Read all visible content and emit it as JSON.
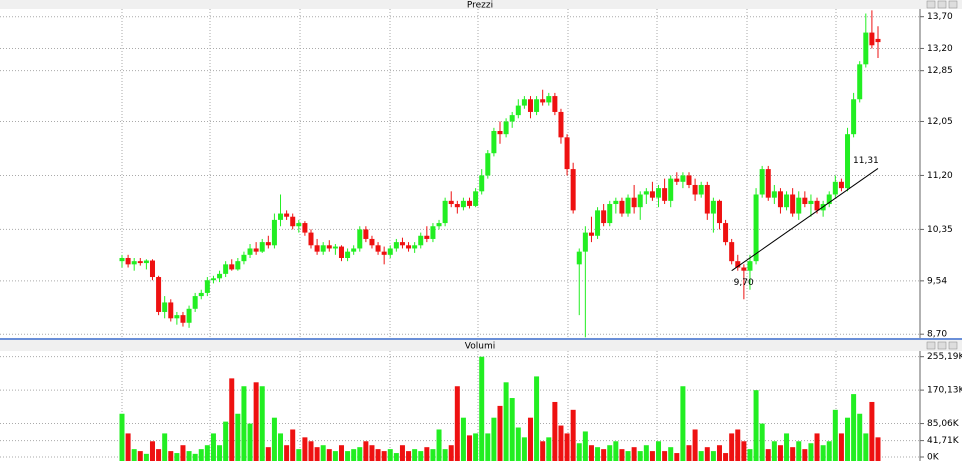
{
  "chart_data": [
    {
      "type": "candlestick",
      "title": "Prezzi",
      "up_color": "#22ee22",
      "down_color": "#ee1111",
      "ylim": [
        8.64,
        13.9
      ],
      "yticks": [
        {
          "value": 13.7,
          "label": "13,70"
        },
        {
          "value": 13.2,
          "label": "13,20"
        },
        {
          "value": 12.85,
          "label": "12,85"
        },
        {
          "value": 12.05,
          "label": "12,05"
        },
        {
          "value": 11.2,
          "label": "11,20"
        },
        {
          "value": 10.35,
          "label": "10,35"
        },
        {
          "value": 9.54,
          "label": "9,54"
        },
        {
          "value": 8.7,
          "label": "8,70"
        }
      ],
      "grid": true,
      "ohlc": [
        [
          9.85,
          9.95,
          9.75,
          9.9
        ],
        [
          9.9,
          9.95,
          9.75,
          9.8
        ],
        [
          9.8,
          9.9,
          9.7,
          9.85
        ],
        [
          9.85,
          9.9,
          9.78,
          9.82
        ],
        [
          9.82,
          9.88,
          9.72,
          9.86
        ],
        [
          9.86,
          9.88,
          9.55,
          9.6
        ],
        [
          9.6,
          9.62,
          9.0,
          9.05
        ],
        [
          9.05,
          9.3,
          8.95,
          9.2
        ],
        [
          9.2,
          9.25,
          8.9,
          8.95
        ],
        [
          8.95,
          9.05,
          8.85,
          9.0
        ],
        [
          9.0,
          9.05,
          8.82,
          8.88
        ],
        [
          8.88,
          9.15,
          8.8,
          9.1
        ],
        [
          9.1,
          9.35,
          9.05,
          9.3
        ],
        [
          9.3,
          9.4,
          9.25,
          9.35
        ],
        [
          9.35,
          9.6,
          9.3,
          9.55
        ],
        [
          9.55,
          9.62,
          9.5,
          9.58
        ],
        [
          9.58,
          9.7,
          9.52,
          9.65
        ],
        [
          9.65,
          9.85,
          9.6,
          9.8
        ],
        [
          9.8,
          9.88,
          9.7,
          9.72
        ],
        [
          9.72,
          9.9,
          9.7,
          9.85
        ],
        [
          9.85,
          10.0,
          9.8,
          9.95
        ],
        [
          9.95,
          10.12,
          9.9,
          10.05
        ],
        [
          10.05,
          10.15,
          9.95,
          10.0
        ],
        [
          10.0,
          10.2,
          9.98,
          10.15
        ],
        [
          10.15,
          10.25,
          10.05,
          10.1
        ],
        [
          10.1,
          10.6,
          10.05,
          10.5
        ],
        [
          10.5,
          10.9,
          10.4,
          10.6
        ],
        [
          10.6,
          10.65,
          10.5,
          10.55
        ],
        [
          10.55,
          10.6,
          10.35,
          10.4
        ],
        [
          10.4,
          10.5,
          10.3,
          10.45
        ],
        [
          10.45,
          10.48,
          10.25,
          10.3
        ],
        [
          10.3,
          10.35,
          10.05,
          10.1
        ],
        [
          10.1,
          10.2,
          9.95,
          10.0
        ],
        [
          10.0,
          10.15,
          9.95,
          10.1
        ],
        [
          10.1,
          10.18,
          10.0,
          10.05
        ],
        [
          10.05,
          10.12,
          9.95,
          10.08
        ],
        [
          10.08,
          10.1,
          9.85,
          9.9
        ],
        [
          9.9,
          10.05,
          9.85,
          10.0
        ],
        [
          10.0,
          10.1,
          9.95,
          10.05
        ],
        [
          10.05,
          10.4,
          10.0,
          10.35
        ],
        [
          10.35,
          10.4,
          10.15,
          10.2
        ],
        [
          10.2,
          10.25,
          10.05,
          10.1
        ],
        [
          10.1,
          10.15,
          9.95,
          10.0
        ],
        [
          10.0,
          10.08,
          9.8,
          9.95
        ],
        [
          9.95,
          10.1,
          9.9,
          10.05
        ],
        [
          10.05,
          10.2,
          10.0,
          10.15
        ],
        [
          10.15,
          10.22,
          10.05,
          10.1
        ],
        [
          10.1,
          10.15,
          10.0,
          10.05
        ],
        [
          10.05,
          10.15,
          9.98,
          10.1
        ],
        [
          10.1,
          10.3,
          10.05,
          10.25
        ],
        [
          10.25,
          10.4,
          10.15,
          10.2
        ],
        [
          10.2,
          10.45,
          10.15,
          10.4
        ],
        [
          10.4,
          10.5,
          10.35,
          10.45
        ],
        [
          10.45,
          10.85,
          10.4,
          10.8
        ],
        [
          10.8,
          10.95,
          10.7,
          10.75
        ],
        [
          10.75,
          10.8,
          10.6,
          10.7
        ],
        [
          10.7,
          10.85,
          10.65,
          10.8
        ],
        [
          10.8,
          10.85,
          10.68,
          10.72
        ],
        [
          10.72,
          11.0,
          10.7,
          10.95
        ],
        [
          10.95,
          11.3,
          10.9,
          11.2
        ],
        [
          11.2,
          11.6,
          11.15,
          11.55
        ],
        [
          11.55,
          11.95,
          11.5,
          11.9
        ],
        [
          11.9,
          12.05,
          11.7,
          11.85
        ],
        [
          11.85,
          12.1,
          11.8,
          12.05
        ],
        [
          12.05,
          12.2,
          11.95,
          12.15
        ],
        [
          12.15,
          12.4,
          12.1,
          12.3
        ],
        [
          12.3,
          12.45,
          12.25,
          12.4
        ],
        [
          12.4,
          12.45,
          12.1,
          12.2
        ],
        [
          12.2,
          12.45,
          12.15,
          12.4
        ],
        [
          12.4,
          12.55,
          12.3,
          12.35
        ],
        [
          12.35,
          12.5,
          12.3,
          12.45
        ],
        [
          12.45,
          12.5,
          12.15,
          12.2
        ],
        [
          12.2,
          12.25,
          11.7,
          11.8
        ],
        [
          11.8,
          11.85,
          11.2,
          11.3
        ],
        [
          11.3,
          11.4,
          10.6,
          10.65
        ],
        [
          9.8,
          10.05,
          9.0,
          10.0
        ],
        [
          10.0,
          10.4,
          8.65,
          10.3
        ],
        [
          10.3,
          10.55,
          10.15,
          10.25
        ],
        [
          10.25,
          10.7,
          10.2,
          10.65
        ],
        [
          10.65,
          10.75,
          10.4,
          10.45
        ],
        [
          10.45,
          10.8,
          10.4,
          10.75
        ],
        [
          10.75,
          10.85,
          10.6,
          10.8
        ],
        [
          10.8,
          10.85,
          10.55,
          10.6
        ],
        [
          10.6,
          10.9,
          10.55,
          10.85
        ],
        [
          10.85,
          11.05,
          10.6,
          10.7
        ],
        [
          10.7,
          10.95,
          10.5,
          10.9
        ],
        [
          10.9,
          11.0,
          10.75,
          10.95
        ],
        [
          10.95,
          11.1,
          10.8,
          10.85
        ],
        [
          10.85,
          11.05,
          10.7,
          11.0
        ],
        [
          11.0,
          11.15,
          10.75,
          10.8
        ],
        [
          10.8,
          11.2,
          10.7,
          11.15
        ],
        [
          11.15,
          11.25,
          11.05,
          11.1
        ],
        [
          11.1,
          11.25,
          11.0,
          11.2
        ],
        [
          11.2,
          11.25,
          11.0,
          11.05
        ],
        [
          11.05,
          11.15,
          10.8,
          10.9
        ],
        [
          10.9,
          11.1,
          10.85,
          11.05
        ],
        [
          11.05,
          11.1,
          10.5,
          10.6
        ],
        [
          10.6,
          10.85,
          10.3,
          10.8
        ],
        [
          10.8,
          10.82,
          10.35,
          10.45
        ],
        [
          10.45,
          10.5,
          10.1,
          10.15
        ],
        [
          10.15,
          10.2,
          9.8,
          9.85
        ],
        [
          9.85,
          9.95,
          9.7,
          9.75
        ],
        [
          9.75,
          9.8,
          9.25,
          9.7
        ],
        [
          9.7,
          9.95,
          9.4,
          9.85
        ],
        [
          9.85,
          11.0,
          9.8,
          10.9
        ],
        [
          10.9,
          11.35,
          10.85,
          11.3
        ],
        [
          11.3,
          11.35,
          10.8,
          10.85
        ],
        [
          10.85,
          11.05,
          10.75,
          10.95
        ],
        [
          10.95,
          11.0,
          10.6,
          10.7
        ],
        [
          10.7,
          10.95,
          10.65,
          10.9
        ],
        [
          10.9,
          11.0,
          10.55,
          10.6
        ],
        [
          10.6,
          10.95,
          10.5,
          10.85
        ],
        [
          10.85,
          10.95,
          10.7,
          10.75
        ],
        [
          10.75,
          10.9,
          10.55,
          10.8
        ],
        [
          10.8,
          10.85,
          10.6,
          10.65
        ],
        [
          10.65,
          10.8,
          10.55,
          10.75
        ],
        [
          10.75,
          10.95,
          10.7,
          10.9
        ],
        [
          10.9,
          11.2,
          10.85,
          11.1
        ],
        [
          11.1,
          11.15,
          10.95,
          11.0
        ],
        [
          11.0,
          11.95,
          10.95,
          11.85
        ],
        [
          11.85,
          12.5,
          11.8,
          12.4
        ],
        [
          12.4,
          13.0,
          12.35,
          12.95
        ],
        [
          12.95,
          13.75,
          12.9,
          13.45
        ],
        [
          13.45,
          13.8,
          13.2,
          13.25
        ],
        [
          13.35,
          13.55,
          13.05,
          13.3
        ]
      ],
      "trendline": {
        "x": [
          100,
          124
        ],
        "values": [
          9.7,
          11.31
        ],
        "value_labels": [
          "9,70",
          "11,31"
        ]
      }
    },
    {
      "type": "bar",
      "title": "Volumi",
      "ylim": [
        0,
        262
      ],
      "yticks": [
        {
          "value": 255.19,
          "label": "255,19K"
        },
        {
          "value": 170.13,
          "label": "170,13K"
        },
        {
          "value": 85.06,
          "label": "85,06K"
        },
        {
          "value": 41.71,
          "label": "41,71K"
        },
        {
          "value": 0,
          "label": "0K"
        }
      ],
      "grid": true,
      "values": [
        110,
        60,
        20,
        15,
        8,
        40,
        20,
        60,
        15,
        10,
        30,
        15,
        8,
        20,
        30,
        60,
        30,
        90,
        200,
        110,
        180,
        85,
        190,
        180,
        25,
        100,
        60,
        30,
        70,
        20,
        50,
        40,
        25,
        30,
        20,
        15,
        30,
        15,
        20,
        25,
        40,
        30,
        20,
        15,
        20,
        10,
        30,
        15,
        20,
        15,
        25,
        20,
        70,
        20,
        30,
        180,
        100,
        55,
        60,
        255,
        60,
        100,
        130,
        190,
        150,
        75,
        50,
        100,
        205,
        40,
        50,
        140,
        80,
        60,
        120,
        35,
        65,
        30,
        25,
        20,
        30,
        40,
        20,
        15,
        25,
        15,
        30,
        15,
        40,
        15,
        25,
        10,
        180,
        30,
        70,
        15,
        25,
        15,
        30,
        10,
        60,
        70,
        40,
        20,
        170,
        85,
        20,
        40,
        30,
        60,
        25,
        40,
        20,
        35,
        60,
        30,
        40,
        120,
        60,
        100,
        160,
        110,
        60,
        140,
        50
      ]
    }
  ]
}
